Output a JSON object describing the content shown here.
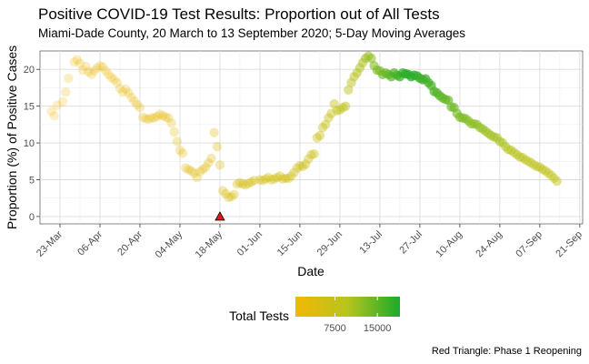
{
  "chart_data": {
    "type": "scatter",
    "title": "Positive COVID-19 Test Results: Proportion out of All Tests",
    "subtitle": "Miami-Dade County, 20 March to 13 September 2020; 5-Day Moving Averages",
    "xlabel": "Date",
    "ylabel": "Proportion (%) of Positive Cases",
    "x_ticks": [
      "23-Mar",
      "06-Apr",
      "20-Apr",
      "04-May",
      "18-May",
      "01-Jun",
      "15-Jun",
      "29-Jun",
      "13-Jul",
      "27-Jul",
      "10-Aug",
      "24-Aug",
      "07-Sep",
      "21-Sep"
    ],
    "x_tick_dates": [
      "2020-03-23",
      "2020-04-06",
      "2020-04-20",
      "2020-05-04",
      "2020-05-18",
      "2020-06-01",
      "2020-06-15",
      "2020-06-29",
      "2020-07-13",
      "2020-07-27",
      "2020-08-10",
      "2020-08-24",
      "2020-09-07",
      "2020-09-21"
    ],
    "xlim": [
      "2020-03-16",
      "2020-09-22"
    ],
    "ylim": [
      -1,
      22.5
    ],
    "y_ticks": [
      0,
      5,
      10,
      15,
      20
    ],
    "grid": true,
    "color_scale": {
      "low": "#f2b705",
      "mid": "#b7c41e",
      "high": "#1aaa2b",
      "min_tests": 500,
      "max_tests": 19000
    },
    "legend": {
      "title": "Total Tests",
      "ticks": [
        7500,
        15000
      ],
      "position": "bottom"
    },
    "marker": {
      "date": "2020-05-18",
      "y": 0,
      "shape": "triangle",
      "color": "#e01a1a"
    },
    "caption": "Red Triangle: Phase 1 Reopening",
    "points": [
      {
        "x": "2020-03-20",
        "y": 14.3,
        "tests": 600
      },
      {
        "x": "2020-03-21",
        "y": 13.7,
        "tests": 700
      },
      {
        "x": "2020-03-22",
        "y": 15.1,
        "tests": 800
      },
      {
        "x": "2020-03-24",
        "y": 15.6,
        "tests": 900
      },
      {
        "x": "2020-03-25",
        "y": 16.9,
        "tests": 1000
      },
      {
        "x": "2020-03-26",
        "y": 18.8,
        "tests": 1100
      },
      {
        "x": "2020-03-28",
        "y": 21.0,
        "tests": 1200
      },
      {
        "x": "2020-03-29",
        "y": 21.3,
        "tests": 1200
      },
      {
        "x": "2020-03-30",
        "y": 20.8,
        "tests": 1300
      },
      {
        "x": "2020-03-31",
        "y": 19.9,
        "tests": 1300
      },
      {
        "x": "2020-04-01",
        "y": 20.4,
        "tests": 1400
      },
      {
        "x": "2020-04-02",
        "y": 19.7,
        "tests": 1400
      },
      {
        "x": "2020-04-03",
        "y": 19.3,
        "tests": 1500
      },
      {
        "x": "2020-04-04",
        "y": 19.8,
        "tests": 1500
      },
      {
        "x": "2020-04-05",
        "y": 20.2,
        "tests": 1500
      },
      {
        "x": "2020-04-06",
        "y": 20.5,
        "tests": 1600
      },
      {
        "x": "2020-04-07",
        "y": 20.3,
        "tests": 1600
      },
      {
        "x": "2020-04-08",
        "y": 19.8,
        "tests": 1600
      },
      {
        "x": "2020-04-09",
        "y": 19.3,
        "tests": 1700
      },
      {
        "x": "2020-04-10",
        "y": 18.9,
        "tests": 1700
      },
      {
        "x": "2020-04-11",
        "y": 18.6,
        "tests": 1800
      },
      {
        "x": "2020-04-12",
        "y": 18.2,
        "tests": 1800
      },
      {
        "x": "2020-04-13",
        "y": 17.4,
        "tests": 1900
      },
      {
        "x": "2020-04-14",
        "y": 16.9,
        "tests": 1900
      },
      {
        "x": "2020-04-15",
        "y": 17.3,
        "tests": 2000
      },
      {
        "x": "2020-04-16",
        "y": 16.8,
        "tests": 2000
      },
      {
        "x": "2020-04-17",
        "y": 16.2,
        "tests": 2100
      },
      {
        "x": "2020-04-18",
        "y": 15.7,
        "tests": 2100
      },
      {
        "x": "2020-04-19",
        "y": 15.2,
        "tests": 2200
      },
      {
        "x": "2020-04-20",
        "y": 14.8,
        "tests": 2200
      },
      {
        "x": "2020-04-21",
        "y": 13.5,
        "tests": 2300
      },
      {
        "x": "2020-04-22",
        "y": 13.3,
        "tests": 2300
      },
      {
        "x": "2020-04-23",
        "y": 13.2,
        "tests": 2400
      },
      {
        "x": "2020-04-24",
        "y": 13.4,
        "tests": 2400
      },
      {
        "x": "2020-04-25",
        "y": 13.4,
        "tests": 2500
      },
      {
        "x": "2020-04-26",
        "y": 13.6,
        "tests": 2500
      },
      {
        "x": "2020-04-27",
        "y": 13.9,
        "tests": 2600
      },
      {
        "x": "2020-04-28",
        "y": 13.7,
        "tests": 2600
      },
      {
        "x": "2020-04-29",
        "y": 13.5,
        "tests": 2700
      },
      {
        "x": "2020-04-30",
        "y": 13.4,
        "tests": 2700
      },
      {
        "x": "2020-05-01",
        "y": 12.7,
        "tests": 2800
      },
      {
        "x": "2020-05-02",
        "y": 11.5,
        "tests": 2800
      },
      {
        "x": "2020-05-03",
        "y": 10.2,
        "tests": 2900
      },
      {
        "x": "2020-05-04",
        "y": 9.0,
        "tests": 2900
      },
      {
        "x": "2020-05-05",
        "y": 8.6,
        "tests": 3000
      },
      {
        "x": "2020-05-06",
        "y": 6.6,
        "tests": 3000
      },
      {
        "x": "2020-05-07",
        "y": 6.4,
        "tests": 3100
      },
      {
        "x": "2020-05-08",
        "y": 6.2,
        "tests": 3100
      },
      {
        "x": "2020-05-09",
        "y": 5.9,
        "tests": 3200
      },
      {
        "x": "2020-05-10",
        "y": 5.3,
        "tests": 3200
      },
      {
        "x": "2020-05-11",
        "y": 6.1,
        "tests": 3300
      },
      {
        "x": "2020-05-12",
        "y": 6.4,
        "tests": 3300
      },
      {
        "x": "2020-05-13",
        "y": 6.7,
        "tests": 3400
      },
      {
        "x": "2020-05-14",
        "y": 7.3,
        "tests": 3400
      },
      {
        "x": "2020-05-15",
        "y": 7.9,
        "tests": 3500
      },
      {
        "x": "2020-05-16",
        "y": 11.4,
        "tests": 3500
      },
      {
        "x": "2020-05-17",
        "y": 9.5,
        "tests": 3600
      },
      {
        "x": "2020-05-18",
        "y": 7.0,
        "tests": 3600
      },
      {
        "x": "2020-05-19",
        "y": 3.5,
        "tests": 4300
      },
      {
        "x": "2020-05-20",
        "y": 3.1,
        "tests": 4400
      },
      {
        "x": "2020-05-21",
        "y": 2.6,
        "tests": 4500
      },
      {
        "x": "2020-05-22",
        "y": 2.7,
        "tests": 4600
      },
      {
        "x": "2020-05-23",
        "y": 3.0,
        "tests": 4700
      },
      {
        "x": "2020-05-24",
        "y": 4.4,
        "tests": 4800
      },
      {
        "x": "2020-05-25",
        "y": 4.6,
        "tests": 4900
      },
      {
        "x": "2020-05-26",
        "y": 4.4,
        "tests": 5000
      },
      {
        "x": "2020-05-27",
        "y": 4.3,
        "tests": 5000
      },
      {
        "x": "2020-05-28",
        "y": 4.5,
        "tests": 5100
      },
      {
        "x": "2020-05-29",
        "y": 4.7,
        "tests": 5100
      },
      {
        "x": "2020-05-30",
        "y": 4.9,
        "tests": 5200
      },
      {
        "x": "2020-06-01",
        "y": 5.0,
        "tests": 5200
      },
      {
        "x": "2020-06-02",
        "y": 4.9,
        "tests": 5300
      },
      {
        "x": "2020-06-03",
        "y": 5.1,
        "tests": 5300
      },
      {
        "x": "2020-06-04",
        "y": 5.3,
        "tests": 5400
      },
      {
        "x": "2020-06-05",
        "y": 5.0,
        "tests": 5400
      },
      {
        "x": "2020-06-06",
        "y": 5.1,
        "tests": 5500
      },
      {
        "x": "2020-06-07",
        "y": 5.3,
        "tests": 5500
      },
      {
        "x": "2020-06-08",
        "y": 5.5,
        "tests": 5600
      },
      {
        "x": "2020-06-09",
        "y": 5.1,
        "tests": 5600
      },
      {
        "x": "2020-06-10",
        "y": 5.2,
        "tests": 5700
      },
      {
        "x": "2020-06-11",
        "y": 5.2,
        "tests": 5800
      },
      {
        "x": "2020-06-12",
        "y": 5.5,
        "tests": 5900
      },
      {
        "x": "2020-06-13",
        "y": 6.0,
        "tests": 6000
      },
      {
        "x": "2020-06-14",
        "y": 6.6,
        "tests": 6100
      },
      {
        "x": "2020-06-15",
        "y": 6.9,
        "tests": 6200
      },
      {
        "x": "2020-06-16",
        "y": 6.8,
        "tests": 6300
      },
      {
        "x": "2020-06-17",
        "y": 7.1,
        "tests": 6400
      },
      {
        "x": "2020-06-18",
        "y": 7.8,
        "tests": 6500
      },
      {
        "x": "2020-06-19",
        "y": 8.4,
        "tests": 6600
      },
      {
        "x": "2020-06-20",
        "y": 8.5,
        "tests": 6700
      },
      {
        "x": "2020-06-21",
        "y": 10.7,
        "tests": 6900
      },
      {
        "x": "2020-06-22",
        "y": 11.0,
        "tests": 7000
      },
      {
        "x": "2020-06-23",
        "y": 12.1,
        "tests": 7200
      },
      {
        "x": "2020-06-24",
        "y": 12.5,
        "tests": 7300
      },
      {
        "x": "2020-06-25",
        "y": 13.4,
        "tests": 7500
      },
      {
        "x": "2020-06-26",
        "y": 14.0,
        "tests": 7600
      },
      {
        "x": "2020-06-27",
        "y": 15.3,
        "tests": 7800
      },
      {
        "x": "2020-06-28",
        "y": 14.4,
        "tests": 8000
      },
      {
        "x": "2020-06-29",
        "y": 14.5,
        "tests": 8200
      },
      {
        "x": "2020-06-30",
        "y": 14.8,
        "tests": 8400
      },
      {
        "x": "2020-07-01",
        "y": 15.0,
        "tests": 8600
      },
      {
        "x": "2020-07-02",
        "y": 17.2,
        "tests": 8900
      },
      {
        "x": "2020-07-03",
        "y": 18.2,
        "tests": 9200
      },
      {
        "x": "2020-07-04",
        "y": 19.0,
        "tests": 9500
      },
      {
        "x": "2020-07-05",
        "y": 19.5,
        "tests": 9800
      },
      {
        "x": "2020-07-06",
        "y": 20.2,
        "tests": 10200
      },
      {
        "x": "2020-07-07",
        "y": 20.9,
        "tests": 10500
      },
      {
        "x": "2020-07-08",
        "y": 21.5,
        "tests": 11000
      },
      {
        "x": "2020-07-09",
        "y": 21.8,
        "tests": 11500
      },
      {
        "x": "2020-07-10",
        "y": 21.5,
        "tests": 12000
      },
      {
        "x": "2020-07-11",
        "y": 20.5,
        "tests": 12500
      },
      {
        "x": "2020-07-12",
        "y": 19.9,
        "tests": 13000
      },
      {
        "x": "2020-07-13",
        "y": 19.8,
        "tests": 13500
      },
      {
        "x": "2020-07-14",
        "y": 19.3,
        "tests": 14000
      },
      {
        "x": "2020-07-15",
        "y": 19.5,
        "tests": 14500
      },
      {
        "x": "2020-07-16",
        "y": 19.3,
        "tests": 15000
      },
      {
        "x": "2020-07-17",
        "y": 19.0,
        "tests": 15500
      },
      {
        "x": "2020-07-18",
        "y": 19.5,
        "tests": 16000
      },
      {
        "x": "2020-07-19",
        "y": 19.2,
        "tests": 16500
      },
      {
        "x": "2020-07-20",
        "y": 19.0,
        "tests": 17000
      },
      {
        "x": "2020-07-21",
        "y": 19.5,
        "tests": 17500
      },
      {
        "x": "2020-07-22",
        "y": 19.4,
        "tests": 17800
      },
      {
        "x": "2020-07-23",
        "y": 19.3,
        "tests": 18000
      },
      {
        "x": "2020-07-24",
        "y": 19.0,
        "tests": 18000
      },
      {
        "x": "2020-07-25",
        "y": 19.2,
        "tests": 17800
      },
      {
        "x": "2020-07-26",
        "y": 19.1,
        "tests": 17500
      },
      {
        "x": "2020-07-27",
        "y": 18.8,
        "tests": 17200
      },
      {
        "x": "2020-07-28",
        "y": 18.6,
        "tests": 17000
      },
      {
        "x": "2020-07-29",
        "y": 18.7,
        "tests": 16800
      },
      {
        "x": "2020-07-30",
        "y": 18.2,
        "tests": 16500
      },
      {
        "x": "2020-07-31",
        "y": 17.8,
        "tests": 16200
      },
      {
        "x": "2020-08-01",
        "y": 17.0,
        "tests": 16000
      },
      {
        "x": "2020-08-02",
        "y": 16.8,
        "tests": 15800
      },
      {
        "x": "2020-08-03",
        "y": 16.4,
        "tests": 15500
      },
      {
        "x": "2020-08-04",
        "y": 16.1,
        "tests": 15000
      },
      {
        "x": "2020-08-05",
        "y": 15.9,
        "tests": 14800
      },
      {
        "x": "2020-08-06",
        "y": 15.8,
        "tests": 14500
      },
      {
        "x": "2020-08-07",
        "y": 14.9,
        "tests": 14200
      },
      {
        "x": "2020-08-08",
        "y": 14.8,
        "tests": 14000
      },
      {
        "x": "2020-08-09",
        "y": 14.0,
        "tests": 13800
      },
      {
        "x": "2020-08-10",
        "y": 13.5,
        "tests": 13500
      },
      {
        "x": "2020-08-11",
        "y": 13.4,
        "tests": 13200
      },
      {
        "x": "2020-08-12",
        "y": 13.3,
        "tests": 13000
      },
      {
        "x": "2020-08-13",
        "y": 13.0,
        "tests": 12800
      },
      {
        "x": "2020-08-14",
        "y": 12.6,
        "tests": 12600
      },
      {
        "x": "2020-08-15",
        "y": 12.6,
        "tests": 12400
      },
      {
        "x": "2020-08-16",
        "y": 12.5,
        "tests": 12200
      },
      {
        "x": "2020-08-17",
        "y": 12.1,
        "tests": 12000
      },
      {
        "x": "2020-08-18",
        "y": 11.9,
        "tests": 11800
      },
      {
        "x": "2020-08-19",
        "y": 11.6,
        "tests": 11600
      },
      {
        "x": "2020-08-20",
        "y": 11.3,
        "tests": 11400
      },
      {
        "x": "2020-08-21",
        "y": 11.0,
        "tests": 11200
      },
      {
        "x": "2020-08-22",
        "y": 10.8,
        "tests": 11000
      },
      {
        "x": "2020-08-23",
        "y": 10.7,
        "tests": 10800
      },
      {
        "x": "2020-08-24",
        "y": 10.2,
        "tests": 10600
      },
      {
        "x": "2020-08-25",
        "y": 10.0,
        "tests": 10400
      },
      {
        "x": "2020-08-26",
        "y": 9.5,
        "tests": 10200
      },
      {
        "x": "2020-08-27",
        "y": 9.1,
        "tests": 10000
      },
      {
        "x": "2020-08-28",
        "y": 9.0,
        "tests": 9800
      },
      {
        "x": "2020-08-29",
        "y": 8.7,
        "tests": 9600
      },
      {
        "x": "2020-08-30",
        "y": 8.4,
        "tests": 9400
      },
      {
        "x": "2020-08-31",
        "y": 8.1,
        "tests": 9300
      },
      {
        "x": "2020-09-01",
        "y": 8.0,
        "tests": 9200
      },
      {
        "x": "2020-09-02",
        "y": 7.7,
        "tests": 9100
      },
      {
        "x": "2020-09-03",
        "y": 7.5,
        "tests": 9000
      },
      {
        "x": "2020-09-04",
        "y": 7.3,
        "tests": 8900
      },
      {
        "x": "2020-09-05",
        "y": 7.0,
        "tests": 8800
      },
      {
        "x": "2020-09-06",
        "y": 6.8,
        "tests": 8700
      },
      {
        "x": "2020-09-07",
        "y": 6.7,
        "tests": 8700
      },
      {
        "x": "2020-09-08",
        "y": 6.4,
        "tests": 8600
      },
      {
        "x": "2020-09-09",
        "y": 6.2,
        "tests": 8600
      },
      {
        "x": "2020-09-10",
        "y": 5.9,
        "tests": 8500
      },
      {
        "x": "2020-09-11",
        "y": 5.6,
        "tests": 8500
      },
      {
        "x": "2020-09-12",
        "y": 5.2,
        "tests": 8400
      },
      {
        "x": "2020-09-13",
        "y": 4.8,
        "tests": 8400
      }
    ]
  }
}
